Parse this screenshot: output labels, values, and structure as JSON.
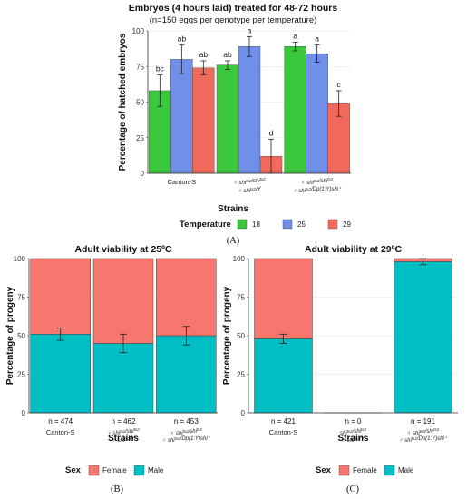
{
  "colors": {
    "t18": "#3cc83c",
    "t25": "#6f8fe8",
    "t29": "#f0695a",
    "female": "#f7766d",
    "male": "#00bfc4"
  },
  "chart_data": [
    {
      "panel_label": "(A)",
      "type": "bar",
      "title": "Embryos (4 hours laid) treated for 48-72 hours",
      "subtitle": "(n=150 eggs per genotype per temperature)",
      "xlabel": "Strains",
      "ylabel": "Percentage of hatched embryos",
      "ylim": [
        0,
        100
      ],
      "yticks": [
        0,
        25,
        50,
        75,
        100
      ],
      "grid": true,
      "legend": {
        "title": "Temperature",
        "placement": "bottom",
        "entries": [
          "18",
          "25",
          "29"
        ]
      },
      "categories": [
        {
          "lines": [
            "Canton-S"
          ]
        },
        {
          "lines": [
            "♀ shi^ts2/shi^ts2",
            "♂ shi^ts2/Y"
          ]
        },
        {
          "lines": [
            "♀ shi^ts2/shi^ts2",
            "♂ shi^ts2/Dp(1:Y)shi⁺"
          ]
        }
      ],
      "series": [
        {
          "name": "18",
          "values": [
            58,
            76,
            89
          ],
          "errors": [
            11,
            3,
            3
          ],
          "letters": [
            "bc",
            "ab",
            "a"
          ]
        },
        {
          "name": "25",
          "values": [
            80,
            89,
            84
          ],
          "errors": [
            10,
            7,
            6
          ],
          "letters": [
            "ab",
            "a",
            "a"
          ]
        },
        {
          "name": "29",
          "values": [
            74,
            12,
            49
          ],
          "errors": [
            5,
            12,
            9
          ],
          "letters": [
            "ab",
            "d",
            "c"
          ]
        }
      ]
    },
    {
      "panel_label": "(B)",
      "type": "bar",
      "stacked": true,
      "title": "Adult viability at 25ºC",
      "xlabel": "Strains",
      "ylabel": "Percentage of progeny",
      "ylim": [
        0,
        100
      ],
      "yticks": [
        0,
        25,
        50,
        75,
        100
      ],
      "grid": true,
      "legend": {
        "title": "Sex",
        "placement": "bottom",
        "entries": [
          "Female",
          "Male"
        ]
      },
      "categories": [
        {
          "lines": [
            "Canton-S"
          ]
        },
        {
          "lines": [
            "♀ shi^ts2/shi^ts2",
            "♂ shi^ts2/Y"
          ]
        },
        {
          "lines": [
            "♀ shi^ts2/shi^ts2",
            "♂ shi^ts2/Dp(1:Y)shi⁺"
          ]
        }
      ],
      "counts": [
        "n = 474",
        "n = 462",
        "n = 453"
      ],
      "series": [
        {
          "name": "Male",
          "values": [
            51,
            45,
            50
          ],
          "errors": [
            4,
            6,
            6
          ]
        },
        {
          "name": "Female",
          "values": [
            49,
            55,
            50
          ]
        }
      ]
    },
    {
      "panel_label": "(C)",
      "type": "bar",
      "stacked": true,
      "title": "Adult viability at 29ºC",
      "xlabel": "Strains",
      "ylabel": "Percentage of progeny",
      "ylim": [
        0,
        100
      ],
      "yticks": [
        0,
        25,
        50,
        75,
        100
      ],
      "grid": true,
      "legend": {
        "title": "Sex",
        "placement": "bottom",
        "entries": [
          "Female",
          "Male"
        ]
      },
      "categories": [
        {
          "lines": [
            "Canton-S"
          ]
        },
        {
          "lines": [
            "shi^ts2/shi^ts2",
            "♂ shi^ts2/Y"
          ]
        },
        {
          "lines": [
            "♀ shi^ts2/shi^ts2",
            "♂ shi^ts2/Dp(1:Y)shi⁺"
          ]
        }
      ],
      "counts": [
        "n = 421",
        "n = 0",
        "n = 191"
      ],
      "series": [
        {
          "name": "Male",
          "values": [
            48,
            0,
            98
          ],
          "errors": [
            3,
            0,
            2
          ]
        },
        {
          "name": "Female",
          "values": [
            52,
            0,
            2
          ]
        }
      ]
    }
  ]
}
